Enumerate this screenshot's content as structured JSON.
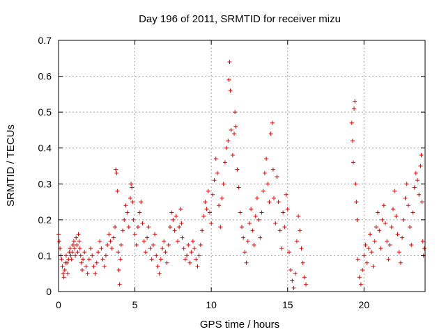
{
  "chart_data": {
    "type": "scatter",
    "title": "Day 196 of 2011, SRMTID for receiver mizu",
    "xlabel": "GPS time / hours",
    "ylabel": "SRMTID / TECUs",
    "xlim": [
      0,
      24
    ],
    "ylim": [
      0,
      0.7
    ],
    "xticks": [
      0,
      5,
      10,
      15,
      20
    ],
    "xtick_labels": [
      "0",
      "5",
      "10",
      "15",
      "20"
    ],
    "yticks": [
      0,
      0.1,
      0.2,
      0.3,
      0.4,
      0.5,
      0.6,
      0.7
    ],
    "ytick_labels": [
      "0",
      "0.1",
      "0.2",
      "0.3",
      "0.4",
      "0.5",
      "0.6",
      "0.7"
    ],
    "grid": true,
    "marker": "+",
    "color": "#e00000",
    "series": [
      {
        "name": "SRMTID",
        "points": [
          [
            0.0,
            0.16
          ],
          [
            0.05,
            0.14
          ],
          [
            0.1,
            0.12
          ],
          [
            0.15,
            0.1
          ],
          [
            0.2,
            0.09
          ],
          [
            0.25,
            0.07
          ],
          [
            0.3,
            0.05
          ],
          [
            0.35,
            0.04
          ],
          [
            0.4,
            0.06
          ],
          [
            0.45,
            0.08
          ],
          [
            0.5,
            0.1
          ],
          [
            0.55,
            0.08
          ],
          [
            0.6,
            0.05
          ],
          [
            0.65,
            0.09
          ],
          [
            0.7,
            0.11
          ],
          [
            0.75,
            0.12
          ],
          [
            0.8,
            0.1
          ],
          [
            0.85,
            0.09
          ],
          [
            0.9,
            0.11
          ],
          [
            0.95,
            0.13
          ],
          [
            1.0,
            0.14
          ],
          [
            1.05,
            0.12
          ],
          [
            1.1,
            0.1
          ],
          [
            1.15,
            0.15
          ],
          [
            1.2,
            0.13
          ],
          [
            1.25,
            0.11
          ],
          [
            1.3,
            0.16
          ],
          [
            1.35,
            0.14
          ],
          [
            1.4,
            0.12
          ],
          [
            1.45,
            0.1
          ],
          [
            1.5,
            0.08
          ],
          [
            1.55,
            0.06
          ],
          [
            1.6,
            0.09
          ],
          [
            1.7,
            0.11
          ],
          [
            1.8,
            0.07
          ],
          [
            1.9,
            0.05
          ],
          [
            2.0,
            0.09
          ],
          [
            2.1,
            0.12
          ],
          [
            2.2,
            0.1
          ],
          [
            2.3,
            0.07
          ],
          [
            2.4,
            0.05
          ],
          [
            2.5,
            0.08
          ],
          [
            2.6,
            0.11
          ],
          [
            2.7,
            0.14
          ],
          [
            2.8,
            0.12
          ],
          [
            2.9,
            0.09
          ],
          [
            3.0,
            0.07
          ],
          [
            3.1,
            0.1
          ],
          [
            3.2,
            0.13
          ],
          [
            3.3,
            0.16
          ],
          [
            3.4,
            0.14
          ],
          [
            3.5,
            0.12
          ],
          [
            3.6,
            0.15
          ],
          [
            3.7,
            0.18
          ],
          [
            3.75,
            0.34
          ],
          [
            3.8,
            0.33
          ],
          [
            3.85,
            0.28
          ],
          [
            3.9,
            0.11
          ],
          [
            3.95,
            0.06
          ],
          [
            4.0,
            0.02
          ],
          [
            4.05,
            0.09
          ],
          [
            4.1,
            0.13
          ],
          [
            4.2,
            0.17
          ],
          [
            4.3,
            0.2
          ],
          [
            4.4,
            0.24
          ],
          [
            4.5,
            0.22
          ],
          [
            4.6,
            0.18
          ],
          [
            4.7,
            0.26
          ],
          [
            4.75,
            0.3
          ],
          [
            4.8,
            0.29
          ],
          [
            4.85,
            0.25
          ],
          [
            4.9,
            0.2
          ],
          [
            5.0,
            0.16
          ],
          [
            5.1,
            0.13
          ],
          [
            5.2,
            0.18
          ],
          [
            5.3,
            0.22
          ],
          [
            5.4,
            0.25
          ],
          [
            5.5,
            0.19
          ],
          [
            5.6,
            0.14
          ],
          [
            5.7,
            0.11
          ],
          [
            5.8,
            0.15
          ],
          [
            5.9,
            0.18
          ],
          [
            6.0,
            0.12
          ],
          [
            6.1,
            0.09
          ],
          [
            6.2,
            0.13
          ],
          [
            6.3,
            0.16
          ],
          [
            6.4,
            0.1
          ],
          [
            6.5,
            0.07
          ],
          [
            6.6,
            0.05
          ],
          [
            6.7,
            0.09
          ],
          [
            6.8,
            0.12
          ],
          [
            6.9,
            0.14
          ],
          [
            7.0,
            0.11
          ],
          [
            7.1,
            0.08
          ],
          [
            7.2,
            0.13
          ],
          [
            7.3,
            0.18
          ],
          [
            7.4,
            0.22
          ],
          [
            7.5,
            0.2
          ],
          [
            7.6,
            0.17
          ],
          [
            7.7,
            0.21
          ],
          [
            7.8,
            0.14
          ],
          [
            7.9,
            0.18
          ],
          [
            8.0,
            0.23
          ],
          [
            8.05,
            0.19
          ],
          [
            8.1,
            0.15
          ],
          [
            8.2,
            0.12
          ],
          [
            8.3,
            0.09
          ],
          [
            8.4,
            0.1
          ],
          [
            8.5,
            0.13
          ],
          [
            8.6,
            0.08
          ],
          [
            8.7,
            0.11
          ],
          [
            8.8,
            0.14
          ],
          [
            8.9,
            0.12
          ],
          [
            9.0,
            0.09
          ],
          [
            9.1,
            0.07
          ],
          [
            9.2,
            0.1
          ],
          [
            9.3,
            0.13
          ],
          [
            9.4,
            0.17
          ],
          [
            9.5,
            0.21
          ],
          [
            9.6,
            0.25
          ],
          [
            9.7,
            0.23
          ],
          [
            9.8,
            0.28
          ],
          [
            9.9,
            0.22
          ],
          [
            10.0,
            0.19
          ],
          [
            10.1,
            0.27
          ],
          [
            10.2,
            0.31
          ],
          [
            10.3,
            0.37
          ],
          [
            10.4,
            0.33
          ],
          [
            10.5,
            0.24
          ],
          [
            10.6,
            0.18
          ],
          [
            10.7,
            0.26
          ],
          [
            10.8,
            0.3
          ],
          [
            10.9,
            0.36
          ],
          [
            11.0,
            0.4
          ],
          [
            11.1,
            0.42
          ],
          [
            11.15,
            0.59
          ],
          [
            11.2,
            0.64
          ],
          [
            11.25,
            0.56
          ],
          [
            11.3,
            0.45
          ],
          [
            11.4,
            0.38
          ],
          [
            11.5,
            0.44
          ],
          [
            11.55,
            0.5
          ],
          [
            11.6,
            0.46
          ],
          [
            11.7,
            0.34
          ],
          [
            11.8,
            0.29
          ],
          [
            11.9,
            0.22
          ],
          [
            12.0,
            0.18
          ],
          [
            12.1,
            0.15
          ],
          [
            12.2,
            0.11
          ],
          [
            12.3,
            0.08
          ],
          [
            12.4,
            0.14
          ],
          [
            12.5,
            0.19
          ],
          [
            12.6,
            0.23
          ],
          [
            12.7,
            0.17
          ],
          [
            12.8,
            0.13
          ],
          [
            12.9,
            0.21
          ],
          [
            13.0,
            0.26
          ],
          [
            13.1,
            0.2
          ],
          [
            13.2,
            0.15
          ],
          [
            13.3,
            0.22
          ],
          [
            13.4,
            0.28
          ],
          [
            13.5,
            0.33
          ],
          [
            13.6,
            0.37
          ],
          [
            13.7,
            0.3
          ],
          [
            13.8,
            0.25
          ],
          [
            13.9,
            0.44
          ],
          [
            14.0,
            0.47
          ],
          [
            14.05,
            0.34
          ],
          [
            14.1,
            0.26
          ],
          [
            14.2,
            0.19
          ],
          [
            14.3,
            0.32
          ],
          [
            14.4,
            0.25
          ],
          [
            14.5,
            0.17
          ],
          [
            14.6,
            0.12
          ],
          [
            14.7,
            0.22
          ],
          [
            14.8,
            0.18
          ],
          [
            14.9,
            0.27
          ],
          [
            15.0,
            0.23
          ],
          [
            15.1,
            0.11
          ],
          [
            15.2,
            0.06
          ],
          [
            15.3,
            0.03
          ],
          [
            15.4,
            0.01
          ],
          [
            15.5,
            0.05
          ],
          [
            15.6,
            0.14
          ],
          [
            15.7,
            0.21
          ],
          [
            15.8,
            0.17
          ],
          [
            15.9,
            0.12
          ],
          [
            16.0,
            0.08
          ],
          [
            16.1,
            0.04
          ],
          [
            16.2,
            0.02
          ],
          [
            19.2,
            0.47
          ],
          [
            19.25,
            0.42
          ],
          [
            19.3,
            0.36
          ],
          [
            19.35,
            0.51
          ],
          [
            19.4,
            0.53
          ],
          [
            19.45,
            0.3
          ],
          [
            19.5,
            0.25
          ],
          [
            19.55,
            0.2
          ],
          [
            19.6,
            0.09
          ],
          [
            19.7,
            0.04
          ],
          [
            19.8,
            0.02
          ],
          [
            19.9,
            0.06
          ],
          [
            20.0,
            0.1
          ],
          [
            20.1,
            0.13
          ],
          [
            20.2,
            0.08
          ],
          [
            20.3,
            0.12
          ],
          [
            20.4,
            0.16
          ],
          [
            20.5,
            0.11
          ],
          [
            20.6,
            0.07
          ],
          [
            20.7,
            0.14
          ],
          [
            20.8,
            0.18
          ],
          [
            20.9,
            0.22
          ],
          [
            21.0,
            0.17
          ],
          [
            21.1,
            0.12
          ],
          [
            21.2,
            0.2
          ],
          [
            21.3,
            0.24
          ],
          [
            21.4,
            0.19
          ],
          [
            21.5,
            0.14
          ],
          [
            21.6,
            0.09
          ],
          [
            21.7,
            0.13
          ],
          [
            21.8,
            0.18
          ],
          [
            21.9,
            0.23
          ],
          [
            22.0,
            0.28
          ],
          [
            22.1,
            0.21
          ],
          [
            22.2,
            0.16
          ],
          [
            22.3,
            0.11
          ],
          [
            22.4,
            0.08
          ],
          [
            22.5,
            0.15
          ],
          [
            22.6,
            0.2
          ],
          [
            22.7,
            0.26
          ],
          [
            22.8,
            0.3
          ],
          [
            22.9,
            0.24
          ],
          [
            23.0,
            0.18
          ],
          [
            23.1,
            0.13
          ],
          [
            23.2,
            0.22
          ],
          [
            23.3,
            0.29
          ],
          [
            23.4,
            0.33
          ],
          [
            23.5,
            0.31
          ],
          [
            23.6,
            0.27
          ],
          [
            23.7,
            0.35
          ],
          [
            23.75,
            0.38
          ],
          [
            23.8,
            0.25
          ],
          [
            23.85,
            0.14
          ],
          [
            23.9,
            0.1
          ],
          [
            23.95,
            0.12
          ]
        ]
      }
    ]
  }
}
